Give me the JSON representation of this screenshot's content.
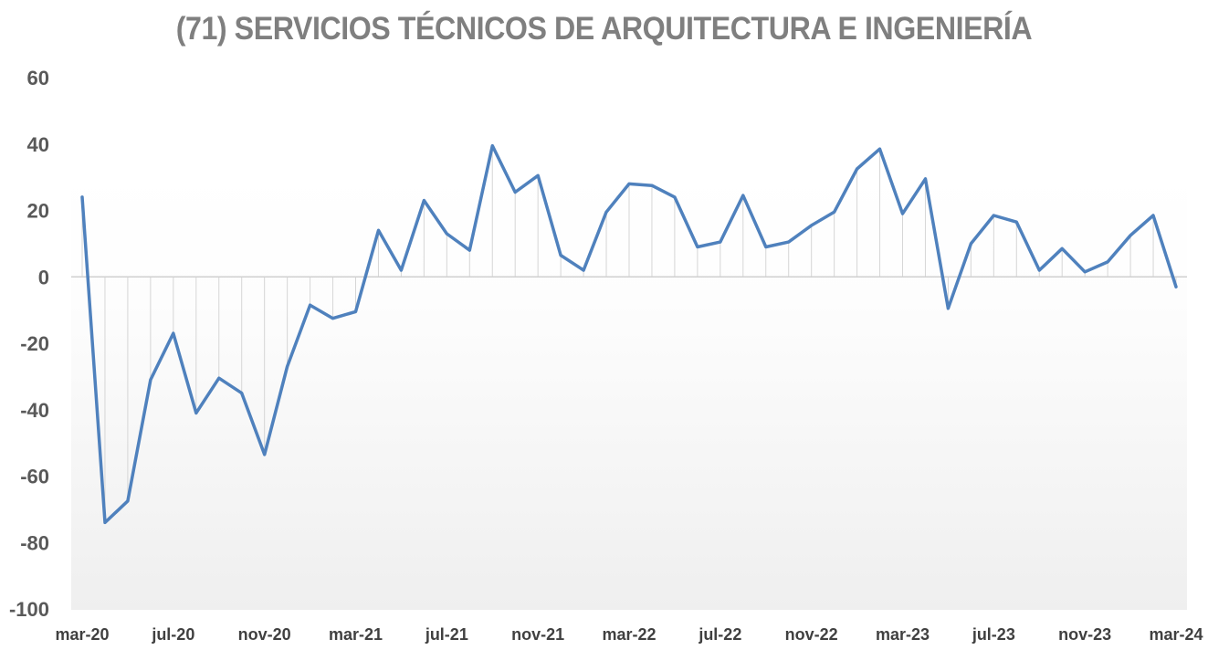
{
  "chart_data": {
    "type": "line",
    "title": "(71) SERVICIOS TÉCNICOS DE ARQUITECTURA E INGENIERÍA",
    "xlabel": "",
    "ylabel": "",
    "ylim": [
      -100,
      60
    ],
    "yticks": [
      60,
      40,
      20,
      0,
      -20,
      -40,
      -60,
      -80,
      -100
    ],
    "x_tick_labels": [
      "mar-20",
      "jul-20",
      "nov-20",
      "mar-21",
      "jul-21",
      "nov-21",
      "mar-22",
      "jul-22",
      "nov-22",
      "mar-23",
      "jul-23",
      "nov-23",
      "mar-24"
    ],
    "x_start": "mar-20",
    "x_end": "mar-24",
    "grid": false,
    "drop_lines": true,
    "series_color": "#4f81bd",
    "series": [
      {
        "values": [
          24,
          -74,
          -67.5,
          -31,
          -17,
          -41,
          -30.5,
          -35,
          -53.5,
          -27,
          -8.5,
          -12.5,
          -10.5,
          14,
          2,
          23,
          13,
          8,
          39.5,
          25.5,
          30.5,
          6.5,
          2,
          19.5,
          28,
          27.5,
          24,
          9,
          10.5,
          24.5,
          9,
          10.5,
          15.5,
          19.5,
          32.5,
          38.5,
          19,
          29.5,
          -9.5,
          10,
          18.5,
          16.5,
          2,
          8.5,
          1.5,
          4.5,
          12.5,
          18.5,
          -3
        ]
      }
    ]
  }
}
